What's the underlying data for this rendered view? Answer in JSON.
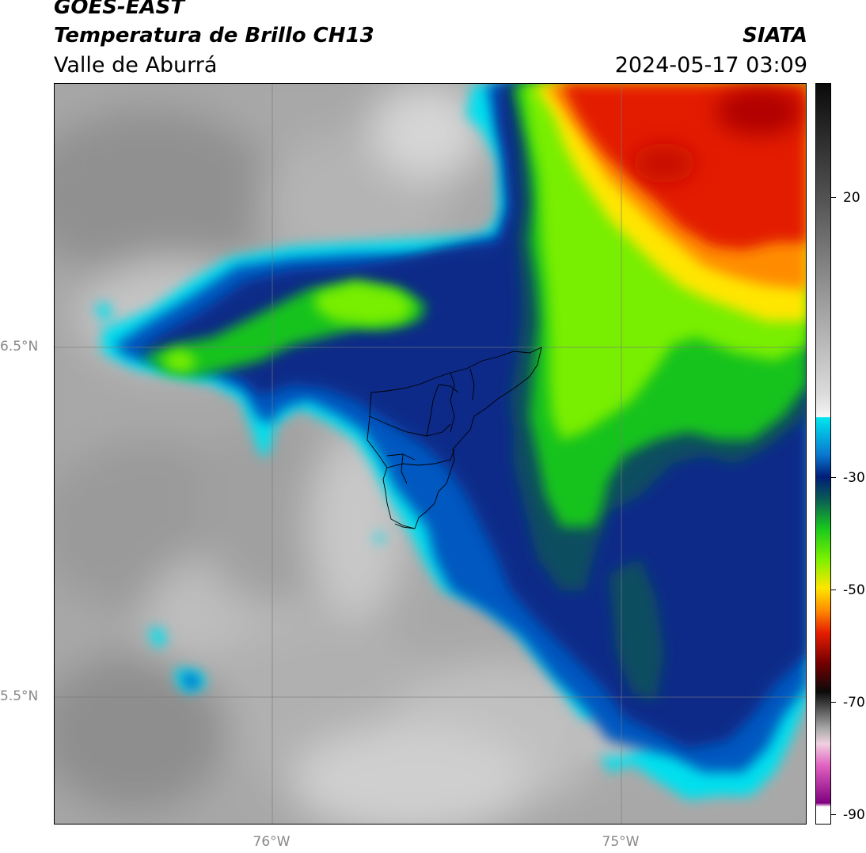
{
  "header": {
    "satellite": "GOES-EAST",
    "product": "Temperatura de Brillo CH13",
    "region": "Valle de Aburrá",
    "organization": "SIATA",
    "timestamp": "2024-05-17 03:09"
  },
  "axes": {
    "lat_labels": [
      "6.5°N",
      "5.5°N"
    ],
    "lon_labels": [
      "76°W",
      "75°W"
    ]
  },
  "colorbar": {
    "tick_labels": [
      "20",
      "-30",
      "-50",
      "-70",
      "-90"
    ],
    "colors": {
      "cyan": "#00e5ee",
      "blue": "#0050b4",
      "navy": "#001e78",
      "green": "#19c81e",
      "bright_green": "#78f000",
      "yellow": "#ffe600",
      "orange": "#ff8c00",
      "red": "#e61e00",
      "dark_red": "#b40000",
      "magenta": "#cc44b0"
    }
  }
}
